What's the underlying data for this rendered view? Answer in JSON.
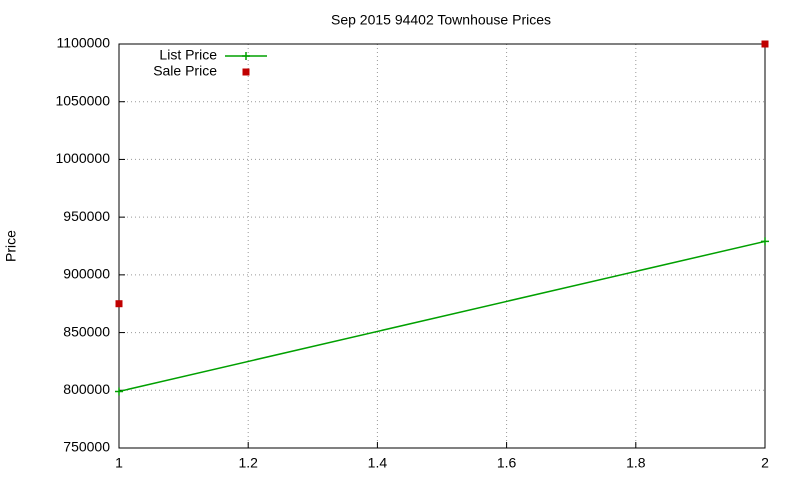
{
  "chart_data": {
    "type": "line",
    "title": "Sep 2015 94402 Townhouse Prices",
    "y_label": "Price",
    "x": [
      1,
      2
    ],
    "series": [
      {
        "name": "List Price",
        "color": "#00a000",
        "style": "linespoints",
        "values": [
          799000,
          929000
        ]
      },
      {
        "name": "Sale Price",
        "color": "#c00000",
        "style": "points",
        "values": [
          875000,
          1100000
        ]
      }
    ],
    "xlim": [
      1,
      2
    ],
    "xticks": [
      1,
      1.2,
      1.4,
      1.6,
      1.8,
      2
    ],
    "ylim": [
      750000,
      1100000
    ],
    "yticks": [
      750000,
      800000,
      850000,
      900000,
      950000,
      1000000,
      1050000,
      1100000
    ],
    "grid": true,
    "legend": "top-left"
  }
}
